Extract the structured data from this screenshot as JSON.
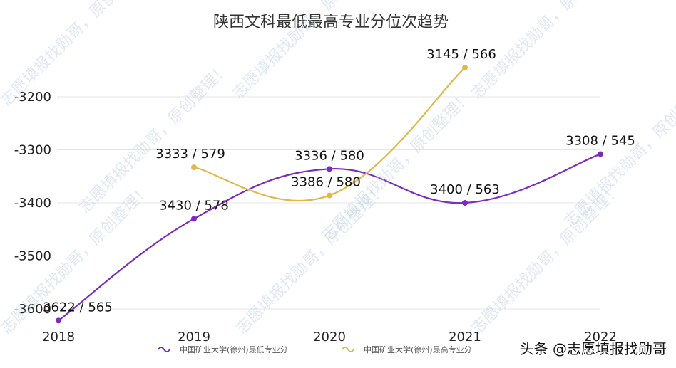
{
  "watermark_text": "志愿填报找勋哥，原创整理！",
  "credit_text": "头条 @志愿填报找勋哥",
  "chart_data": {
    "type": "line",
    "title": "陕西文科最低最高专业分位次趋势",
    "categories": [
      "2018",
      "2019",
      "2020",
      "2021",
      "2022"
    ],
    "y_ticks": [
      "-3200",
      "-3300",
      "-3400",
      "-3500",
      "-3600"
    ],
    "y_range": [
      -3620,
      -3145
    ],
    "grid": true,
    "legend_position": "bottom",
    "series": [
      {
        "name": "中国矿业大学(徐州)最低专业分",
        "color": "#7b2cbf",
        "values": [
          -3622,
          -3430,
          -3336,
          -3400,
          -3308
        ],
        "labels": [
          "3622 / 565",
          "3430 / 578",
          "3336 / 580",
          "3400 / 563",
          "3308 / 545"
        ]
      },
      {
        "name": "中国矿业大学(徐州)最高专业分",
        "color": "#e0b84a",
        "values": [
          null,
          -3333,
          -3386,
          -3145,
          null
        ],
        "labels": [
          "",
          "3333 / 579",
          "3386 / 580",
          "3145 / 566",
          ""
        ]
      }
    ]
  }
}
